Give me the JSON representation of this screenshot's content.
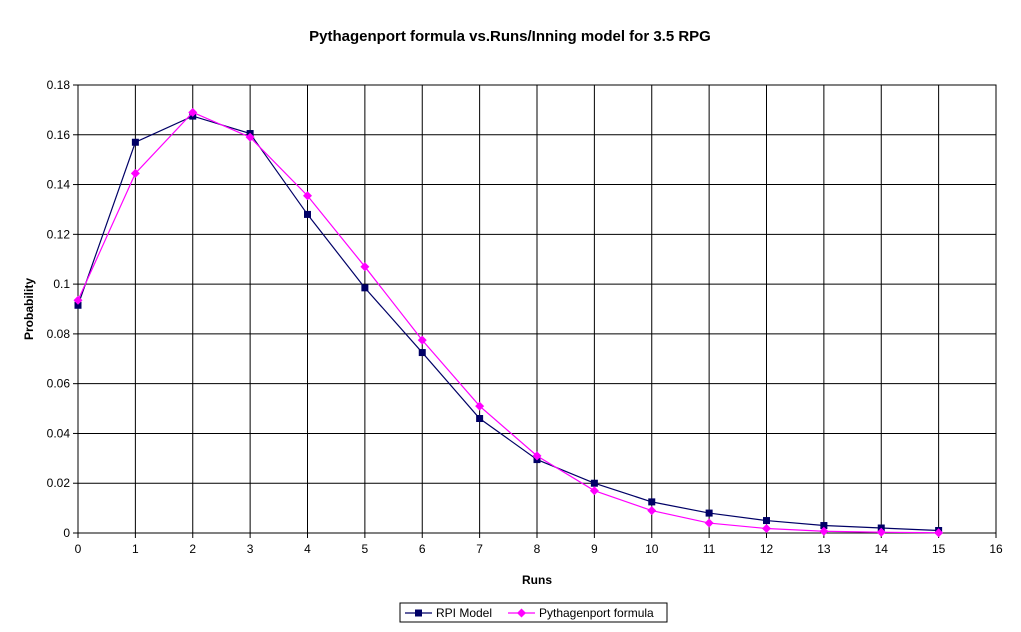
{
  "chart_data": {
    "type": "line",
    "title": "Pythagenport formula vs.Runs/Inning model for 3.5 RPG",
    "xlabel": "Runs",
    "ylabel": "Probability",
    "xlim": [
      0,
      16
    ],
    "ylim": [
      0,
      0.18
    ],
    "x_ticks": [
      "0",
      "1",
      "2",
      "3",
      "4",
      "5",
      "6",
      "7",
      "8",
      "9",
      "10",
      "11",
      "12",
      "13",
      "14",
      "15",
      "16"
    ],
    "y_ticks": [
      "0",
      "0.02",
      "0.04",
      "0.06",
      "0.08",
      "0.1",
      "0.12",
      "0.14",
      "0.16",
      "0.18"
    ],
    "grid": true,
    "legend_position": "bottom",
    "x": [
      0,
      1,
      2,
      3,
      4,
      5,
      6,
      7,
      8,
      9,
      10,
      11,
      12,
      13,
      14,
      15
    ],
    "series": [
      {
        "name": "RPI Model",
        "color": "#000066",
        "marker": "square",
        "values": [
          0.0915,
          0.157,
          0.1675,
          0.1605,
          0.128,
          0.0985,
          0.0725,
          0.046,
          0.0295,
          0.02,
          0.0125,
          0.008,
          0.005,
          0.003,
          0.002,
          0.001
        ]
      },
      {
        "name": "Pythagenport formula",
        "color": "#ff00ff",
        "marker": "diamond",
        "values": [
          0.0935,
          0.1445,
          0.169,
          0.159,
          0.1355,
          0.107,
          0.0775,
          0.051,
          0.031,
          0.017,
          0.009,
          0.004,
          0.0018,
          0.0007,
          0.0003,
          0.0001
        ]
      }
    ]
  }
}
